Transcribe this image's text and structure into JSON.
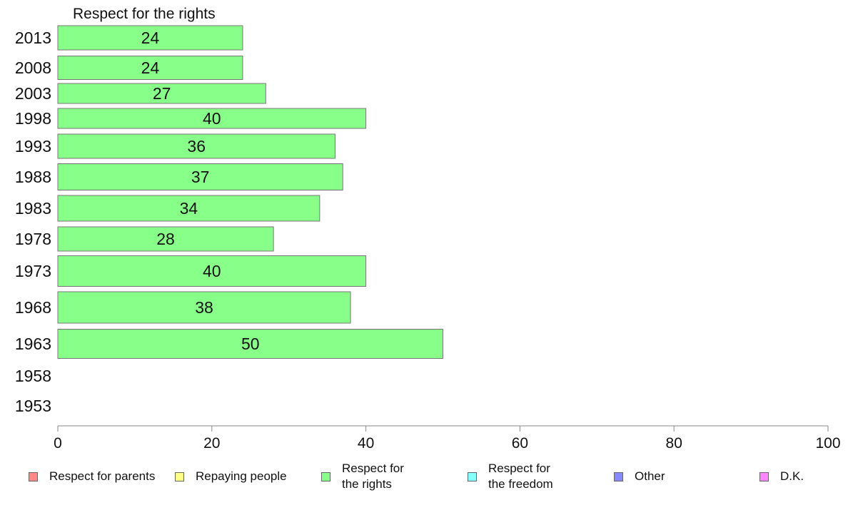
{
  "chart_data": {
    "type": "bar",
    "orientation": "horizontal",
    "title": "Respect for the rights",
    "categories": [
      "2013",
      "2008",
      "2003",
      "1998",
      "1993",
      "1988",
      "1983",
      "1978",
      "1973",
      "1968",
      "1963",
      "1958",
      "1953"
    ],
    "series": [
      {
        "name": "Respect for the rights",
        "color": "#88ff88",
        "values": [
          24,
          24,
          27,
          40,
          36,
          37,
          34,
          28,
          40,
          38,
          50,
          null,
          null
        ],
        "labels": [
          "24",
          "24",
          "27",
          "40",
          "36",
          "37",
          "34",
          "28",
          "40",
          "38",
          "50",
          "",
          ""
        ]
      }
    ],
    "xlim": [
      0,
      100
    ],
    "xticks": [
      "0",
      "20",
      "40",
      "60",
      "80",
      "100"
    ],
    "grid": false,
    "legend_position": "bottom",
    "legend": [
      {
        "label": "Respect for parents",
        "color": "#ff8888"
      },
      {
        "label": "Repaying people",
        "color": "#ffff88"
      },
      {
        "label": "Respect for\nthe rights",
        "color": "#88ff88"
      },
      {
        "label": "Respect for\nthe freedom",
        "color": "#88ffff"
      },
      {
        "label": "Other",
        "color": "#8888ff"
      },
      {
        "label": "D.K.",
        "color": "#ff88ff"
      }
    ]
  }
}
